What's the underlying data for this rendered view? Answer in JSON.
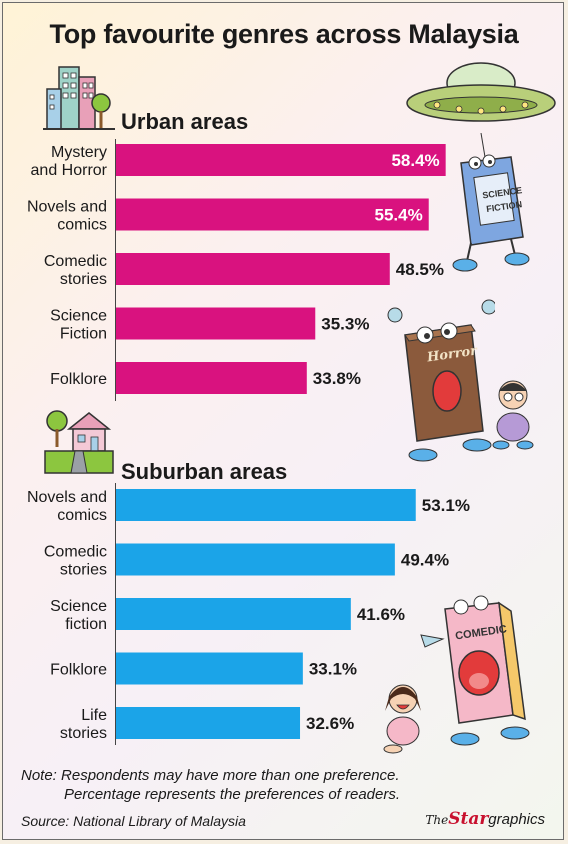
{
  "title": "Top favourite genres across Malaysia",
  "chart_data": [
    {
      "type": "bar",
      "orientation": "horizontal",
      "title": "Urban areas",
      "categories": [
        "Mystery\nand Horror",
        "Novels and\ncomics",
        "Comedic\nstories",
        "Science\nFiction",
        "Folklore"
      ],
      "values": [
        58.4,
        55.4,
        48.5,
        35.3,
        33.8
      ],
      "value_suffix": "%",
      "color": "#d9127f",
      "grid": false
    },
    {
      "type": "bar",
      "orientation": "horizontal",
      "title": "Suburban areas",
      "categories": [
        "Novels and\ncomics",
        "Comedic\nstories",
        "Science\nfiction",
        "Folklore",
        "Life\nstories"
      ],
      "values": [
        53.1,
        49.4,
        41.6,
        33.1,
        32.6
      ],
      "value_suffix": "%",
      "color": "#1ba4e8",
      "grid": false
    }
  ],
  "illustration_text": {
    "science_book": "SCIENCE FICTION",
    "horror_book": "Horror",
    "comedic_book": "COMEDIC"
  },
  "note": {
    "line1": "Note: Respondents may have more than one preference.",
    "line2": "Percentage represents the preferences of readers."
  },
  "source": "Source: National Library of Malaysia",
  "brand": {
    "the": "The",
    "star": "Star",
    "graphics": "graphics"
  }
}
